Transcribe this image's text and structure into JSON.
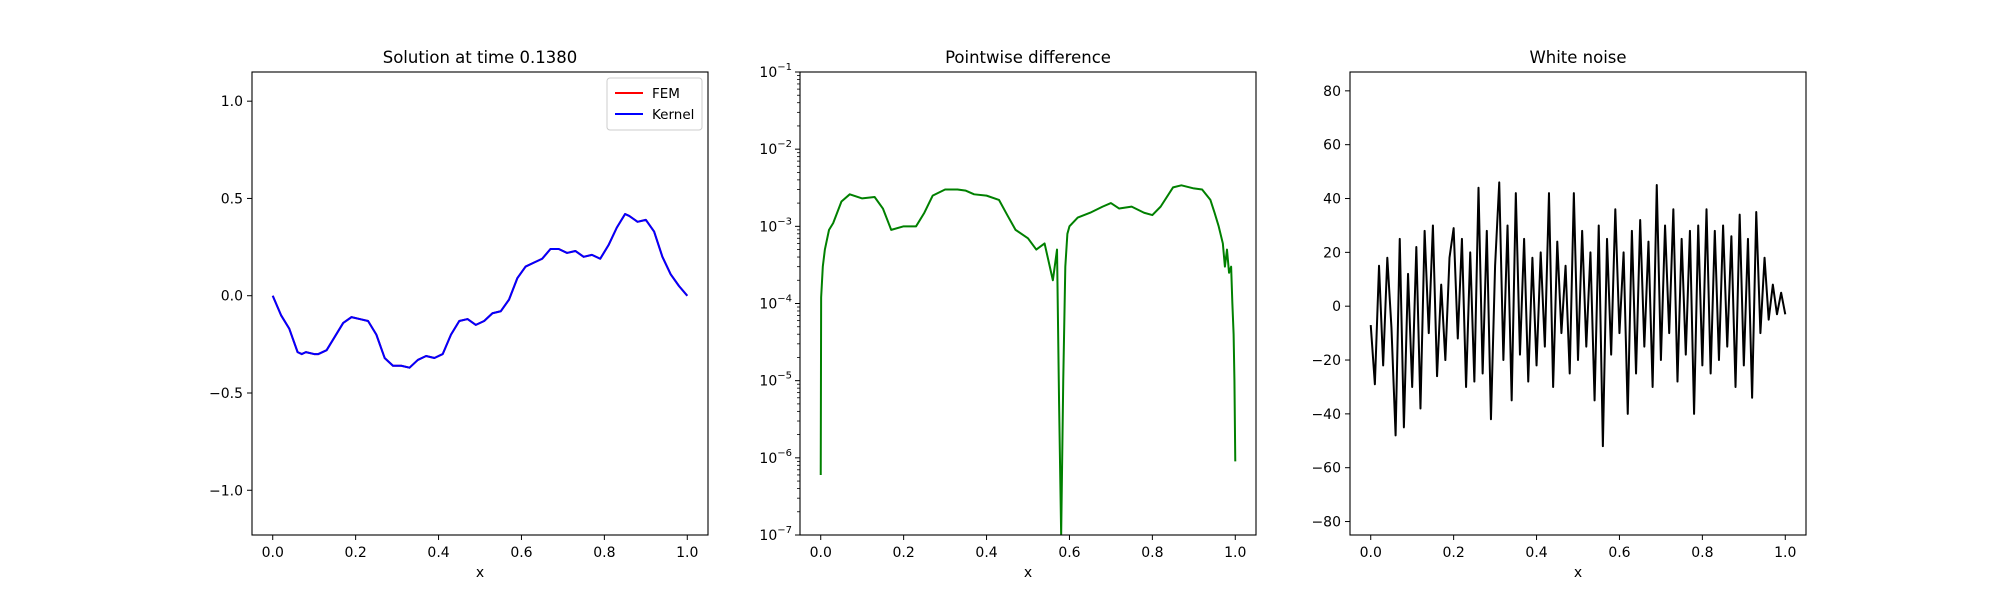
{
  "chart_data": [
    {
      "type": "line",
      "title": "Solution at time 0.1380",
      "xlabel": "x",
      "ylabel": "",
      "xlim": [
        -0.05,
        1.05
      ],
      "ylim": [
        -1.23,
        1.15
      ],
      "xticks": [
        0.0,
        0.2,
        0.4,
        0.6,
        0.8,
        1.0
      ],
      "xtick_labels": [
        "0.0",
        "0.2",
        "0.4",
        "0.6",
        "0.8",
        "1.0"
      ],
      "yticks": [
        -1.0,
        -0.5,
        0.0,
        0.5,
        1.0
      ],
      "ytick_labels": [
        "−1.0",
        "−0.5",
        "0.0",
        "0.5",
        "1.0"
      ],
      "legend": {
        "position": "upper-right",
        "entries": [
          "FEM",
          "Kernel"
        ]
      },
      "x": [
        0.0,
        0.02,
        0.04,
        0.06,
        0.07,
        0.08,
        0.1,
        0.11,
        0.13,
        0.15,
        0.17,
        0.19,
        0.21,
        0.23,
        0.25,
        0.27,
        0.29,
        0.31,
        0.33,
        0.35,
        0.37,
        0.39,
        0.41,
        0.43,
        0.45,
        0.47,
        0.49,
        0.51,
        0.53,
        0.55,
        0.57,
        0.59,
        0.61,
        0.63,
        0.65,
        0.67,
        0.69,
        0.71,
        0.73,
        0.75,
        0.77,
        0.79,
        0.81,
        0.83,
        0.85,
        0.86,
        0.88,
        0.9,
        0.92,
        0.94,
        0.96,
        0.98,
        1.0
      ],
      "series": [
        {
          "name": "FEM",
          "color": "#ff0000",
          "values": [
            0.0,
            -0.1,
            -0.17,
            -0.29,
            -0.3,
            -0.29,
            -0.3,
            -0.3,
            -0.28,
            -0.21,
            -0.14,
            -0.11,
            -0.12,
            -0.13,
            -0.2,
            -0.32,
            -0.36,
            -0.36,
            -0.37,
            -0.33,
            -0.31,
            -0.32,
            -0.3,
            -0.2,
            -0.13,
            -0.12,
            -0.15,
            -0.13,
            -0.09,
            -0.08,
            -0.02,
            0.09,
            0.15,
            0.17,
            0.19,
            0.24,
            0.24,
            0.22,
            0.23,
            0.2,
            0.21,
            0.19,
            0.26,
            0.35,
            0.42,
            0.41,
            0.38,
            0.39,
            0.33,
            0.2,
            0.11,
            0.05,
            0.0
          ]
        },
        {
          "name": "Kernel",
          "color": "#0000ff",
          "values": [
            0.0,
            -0.1,
            -0.17,
            -0.29,
            -0.3,
            -0.29,
            -0.3,
            -0.3,
            -0.28,
            -0.21,
            -0.14,
            -0.11,
            -0.12,
            -0.13,
            -0.2,
            -0.32,
            -0.36,
            -0.36,
            -0.37,
            -0.33,
            -0.31,
            -0.32,
            -0.3,
            -0.2,
            -0.13,
            -0.12,
            -0.15,
            -0.13,
            -0.09,
            -0.08,
            -0.02,
            0.09,
            0.15,
            0.17,
            0.19,
            0.24,
            0.24,
            0.22,
            0.23,
            0.2,
            0.21,
            0.19,
            0.26,
            0.35,
            0.42,
            0.41,
            0.38,
            0.39,
            0.33,
            0.2,
            0.11,
            0.05,
            0.0
          ]
        }
      ]
    },
    {
      "type": "line",
      "title": "Pointwise difference",
      "xlabel": "x",
      "ylabel": "",
      "yscale": "log",
      "xlim": [
        -0.05,
        1.05
      ],
      "ylim": [
        1e-07,
        0.1
      ],
      "xticks": [
        0.0,
        0.2,
        0.4,
        0.6,
        0.8,
        1.0
      ],
      "xtick_labels": [
        "0.0",
        "0.2",
        "0.4",
        "0.6",
        "0.8",
        "1.0"
      ],
      "yticks": [
        1e-07,
        1e-06,
        1e-05,
        0.0001,
        0.001,
        0.01,
        0.1
      ],
      "ytick_bases": [
        "10",
        "10",
        "10",
        "10",
        "10",
        "10",
        "10"
      ],
      "ytick_exponents": [
        "−7",
        "−6",
        "−5",
        "−4",
        "−3",
        "−2",
        "−1"
      ],
      "x": [
        0.0,
        0.001,
        0.005,
        0.01,
        0.02,
        0.03,
        0.05,
        0.07,
        0.1,
        0.13,
        0.15,
        0.17,
        0.2,
        0.23,
        0.25,
        0.27,
        0.3,
        0.33,
        0.35,
        0.37,
        0.4,
        0.43,
        0.45,
        0.47,
        0.5,
        0.52,
        0.54,
        0.56,
        0.57,
        0.575,
        0.58,
        0.585,
        0.59,
        0.595,
        0.6,
        0.62,
        0.65,
        0.68,
        0.7,
        0.72,
        0.75,
        0.78,
        0.8,
        0.82,
        0.85,
        0.87,
        0.9,
        0.92,
        0.94,
        0.95,
        0.96,
        0.97,
        0.975,
        0.98,
        0.985,
        0.99,
        0.993,
        0.996,
        0.998,
        1.0
      ],
      "series": [
        {
          "name": "",
          "color": "#008000",
          "values": [
            6e-07,
            0.00012,
            0.0003,
            0.0005,
            0.0009,
            0.0011,
            0.0021,
            0.0026,
            0.0023,
            0.0024,
            0.0017,
            0.0009,
            0.001,
            0.001,
            0.0015,
            0.0025,
            0.003,
            0.003,
            0.0029,
            0.0026,
            0.0025,
            0.0022,
            0.0014,
            0.0009,
            0.0007,
            0.0005,
            0.0006,
            0.0002,
            0.0005,
            5e-06,
            1e-07,
            1e-05,
            0.0003,
            0.0008,
            0.001,
            0.0013,
            0.0015,
            0.0018,
            0.002,
            0.0017,
            0.0018,
            0.0015,
            0.0014,
            0.0018,
            0.0032,
            0.0034,
            0.0031,
            0.003,
            0.0022,
            0.0015,
            0.001,
            0.0006,
            0.0003,
            0.0005,
            0.00025,
            0.0003,
            0.0001,
            4e-05,
            1e-05,
            9e-07
          ]
        }
      ]
    },
    {
      "type": "line",
      "title": "White noise",
      "xlabel": "x",
      "ylabel": "",
      "xlim": [
        -0.05,
        1.05
      ],
      "ylim": [
        -85,
        87
      ],
      "xticks": [
        0.0,
        0.2,
        0.4,
        0.6,
        0.8,
        1.0
      ],
      "xtick_labels": [
        "0.0",
        "0.2",
        "0.4",
        "0.6",
        "0.8",
        "1.0"
      ],
      "yticks": [
        -80,
        -60,
        -40,
        -20,
        0,
        20,
        40,
        60,
        80
      ],
      "ytick_labels": [
        "−80",
        "−60",
        "−40",
        "−20",
        "0",
        "20",
        "40",
        "60",
        "80"
      ],
      "x": [
        0.0,
        0.01,
        0.02,
        0.03,
        0.04,
        0.05,
        0.06,
        0.07,
        0.08,
        0.09,
        0.1,
        0.11,
        0.12,
        0.13,
        0.14,
        0.15,
        0.16,
        0.17,
        0.18,
        0.19,
        0.2,
        0.21,
        0.22,
        0.23,
        0.24,
        0.25,
        0.26,
        0.27,
        0.28,
        0.29,
        0.3,
        0.31,
        0.32,
        0.33,
        0.34,
        0.35,
        0.36,
        0.37,
        0.38,
        0.39,
        0.4,
        0.41,
        0.42,
        0.43,
        0.44,
        0.45,
        0.46,
        0.47,
        0.48,
        0.49,
        0.5,
        0.51,
        0.52,
        0.53,
        0.54,
        0.55,
        0.56,
        0.57,
        0.58,
        0.59,
        0.6,
        0.61,
        0.62,
        0.63,
        0.64,
        0.65,
        0.66,
        0.67,
        0.68,
        0.69,
        0.7,
        0.71,
        0.72,
        0.73,
        0.74,
        0.75,
        0.76,
        0.77,
        0.78,
        0.79,
        0.8,
        0.81,
        0.82,
        0.83,
        0.84,
        0.85,
        0.86,
        0.87,
        0.88,
        0.89,
        0.9,
        0.91,
        0.92,
        0.93,
        0.94,
        0.95,
        0.96,
        0.97,
        0.98,
        0.99,
        1.0
      ],
      "series": [
        {
          "name": "",
          "color": "#000000",
          "values": [
            -7,
            -29,
            15,
            -22,
            18,
            -8,
            -48,
            25,
            -45,
            12,
            -30,
            22,
            -38,
            28,
            -10,
            30,
            -26,
            8,
            -20,
            18,
            29,
            -12,
            25,
            -30,
            20,
            -28,
            44,
            -25,
            28,
            -42,
            15,
            46,
            -20,
            30,
            -35,
            42,
            -18,
            25,
            -28,
            18,
            -22,
            20,
            -15,
            42,
            -30,
            24,
            -10,
            15,
            -25,
            42,
            -20,
            28,
            -15,
            20,
            -35,
            30,
            -52,
            25,
            -18,
            36,
            -10,
            20,
            -40,
            28,
            -25,
            32,
            -15,
            24,
            -30,
            45,
            -20,
            30,
            -10,
            36,
            -28,
            25,
            -18,
            28,
            -40,
            30,
            -22,
            36,
            -25,
            28,
            -20,
            30,
            -15,
            26,
            -30,
            34,
            -22,
            25,
            -34,
            35,
            -10,
            18,
            -5,
            8,
            -3,
            5,
            -3
          ]
        }
      ]
    }
  ]
}
